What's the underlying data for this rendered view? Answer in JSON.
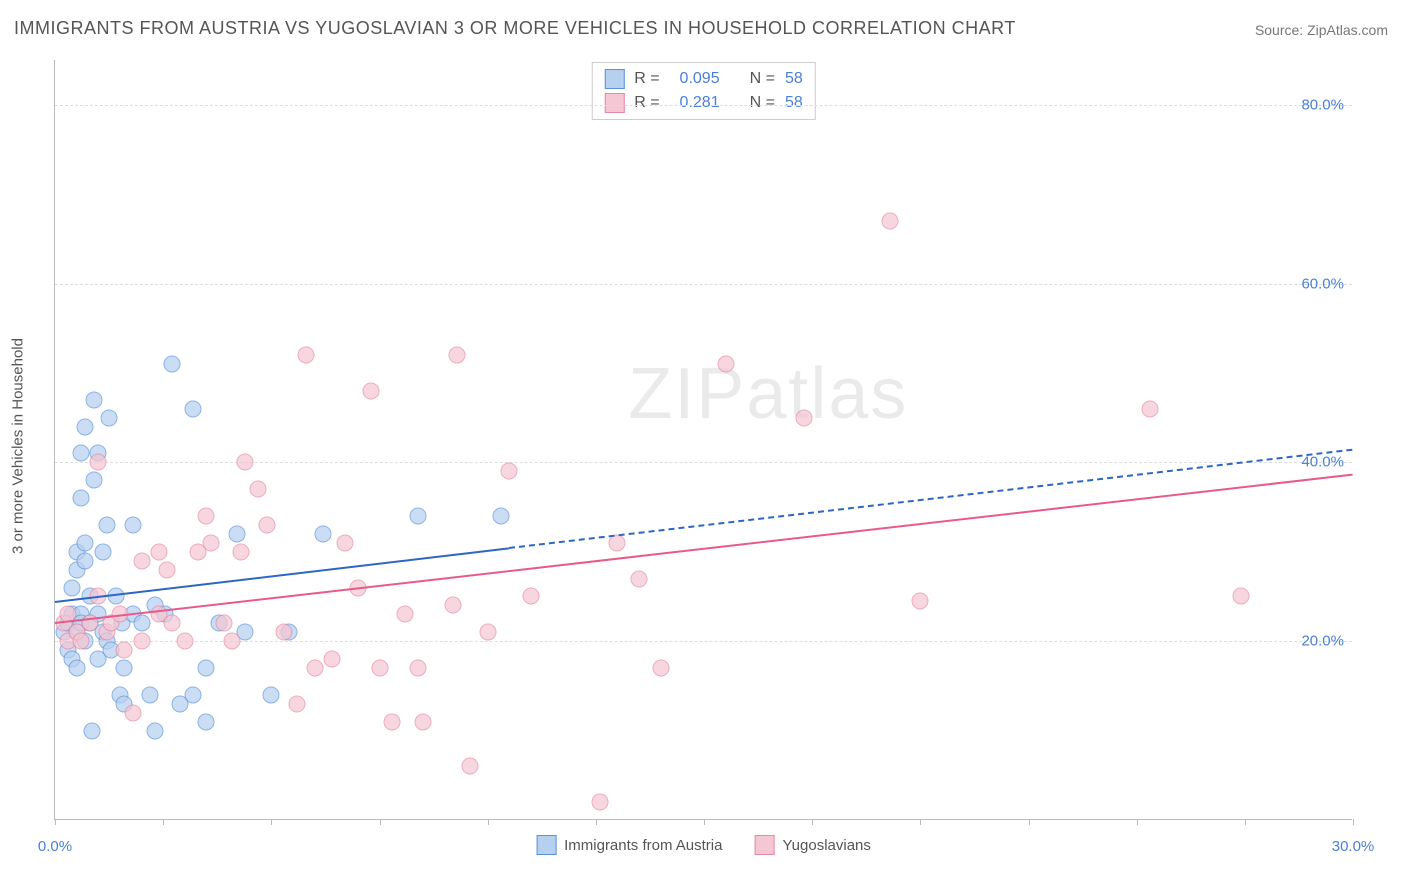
{
  "title": "IMMIGRANTS FROM AUSTRIA VS YUGOSLAVIAN 3 OR MORE VEHICLES IN HOUSEHOLD CORRELATION CHART",
  "source": "Source: ZipAtlas.com",
  "yaxis_label": "3 or more Vehicles in Household",
  "watermark_zip": "ZIP",
  "watermark_atlas": "atlas",
  "chart": {
    "type": "scatter",
    "background_color": "#ffffff",
    "grid_color": "#dddddd",
    "axis_color": "#bbbbbb",
    "tick_label_color": "#4a7fd8",
    "text_color": "#555555",
    "title_fontsize": 18,
    "tick_fontsize": 15,
    "label_fontsize": 15,
    "marker_size": 17,
    "marker_opacity": 0.7,
    "xlim": [
      0,
      30
    ],
    "ylim": [
      0,
      85
    ],
    "xticks": [
      0,
      2.5,
      5,
      7.5,
      10,
      12.5,
      15,
      17.5,
      20,
      22.5,
      25,
      27.5,
      30
    ],
    "xtick_labels": {
      "0": "0.0%",
      "30": "30.0%"
    },
    "yticks": [
      20,
      40,
      60,
      80
    ],
    "ytick_labels": [
      "20.0%",
      "40.0%",
      "60.0%",
      "80.0%"
    ],
    "series": [
      {
        "name": "Immigrants from Austria",
        "fill_color": "#b6d0f0",
        "stroke_color": "#5a93d8",
        "R": "0.095",
        "N": "58",
        "trend": {
          "x1": 0,
          "y1": 24.5,
          "x2": 10.5,
          "y2": 30.5,
          "extrap_x2": 30,
          "extrap_y2": 41.5,
          "color": "#2d66c4"
        },
        "points": [
          [
            0.2,
            21
          ],
          [
            0.3,
            22
          ],
          [
            0.3,
            19
          ],
          [
            0.4,
            23
          ],
          [
            0.4,
            18
          ],
          [
            0.4,
            26
          ],
          [
            0.5,
            21
          ],
          [
            0.5,
            28
          ],
          [
            0.5,
            17
          ],
          [
            0.5,
            30
          ],
          [
            0.6,
            23
          ],
          [
            0.6,
            22
          ],
          [
            0.6,
            36
          ],
          [
            0.6,
            41
          ],
          [
            0.7,
            29
          ],
          [
            0.7,
            31
          ],
          [
            0.7,
            20
          ],
          [
            0.7,
            44
          ],
          [
            0.8,
            22
          ],
          [
            0.8,
            25
          ],
          [
            0.85,
            10
          ],
          [
            0.9,
            38
          ],
          [
            0.9,
            47
          ],
          [
            1.0,
            18
          ],
          [
            1.0,
            23
          ],
          [
            1.0,
            41
          ],
          [
            1.1,
            21
          ],
          [
            1.1,
            30
          ],
          [
            1.2,
            20
          ],
          [
            1.2,
            33
          ],
          [
            1.25,
            45
          ],
          [
            1.3,
            19
          ],
          [
            1.4,
            25
          ],
          [
            1.5,
            14
          ],
          [
            1.55,
            22
          ],
          [
            1.6,
            13
          ],
          [
            1.6,
            17
          ],
          [
            1.8,
            23
          ],
          [
            1.8,
            33
          ],
          [
            2.0,
            22
          ],
          [
            2.2,
            14
          ],
          [
            2.3,
            10
          ],
          [
            2.3,
            24
          ],
          [
            2.55,
            23
          ],
          [
            2.7,
            51
          ],
          [
            2.9,
            13
          ],
          [
            3.2,
            14
          ],
          [
            3.2,
            46
          ],
          [
            3.5,
            11
          ],
          [
            3.5,
            17
          ],
          [
            3.8,
            22
          ],
          [
            4.2,
            32
          ],
          [
            4.4,
            21
          ],
          [
            5.0,
            14
          ],
          [
            5.4,
            21
          ],
          [
            6.2,
            32
          ],
          [
            8.4,
            34
          ],
          [
            10.3,
            34
          ]
        ]
      },
      {
        "name": "Yugoslavians",
        "fill_color": "#f5c6d3",
        "stroke_color": "#e589a3",
        "R": "0.281",
        "N": "58",
        "trend": {
          "x1": 0,
          "y1": 22.2,
          "x2": 30,
          "y2": 38.8,
          "color": "#e85a8a"
        },
        "points": [
          [
            0.2,
            22
          ],
          [
            0.3,
            20
          ],
          [
            0.3,
            23
          ],
          [
            0.5,
            21
          ],
          [
            0.6,
            20
          ],
          [
            0.8,
            22
          ],
          [
            1.0,
            25
          ],
          [
            1.0,
            40
          ],
          [
            1.2,
            21
          ],
          [
            1.3,
            22
          ],
          [
            1.5,
            23
          ],
          [
            1.6,
            19
          ],
          [
            1.8,
            12
          ],
          [
            2.0,
            20
          ],
          [
            2.0,
            29
          ],
          [
            2.4,
            23
          ],
          [
            2.4,
            30
          ],
          [
            2.6,
            28
          ],
          [
            2.7,
            22
          ],
          [
            3.0,
            20
          ],
          [
            3.3,
            30
          ],
          [
            3.5,
            34
          ],
          [
            3.6,
            31
          ],
          [
            3.9,
            22
          ],
          [
            4.1,
            20
          ],
          [
            4.3,
            30
          ],
          [
            4.4,
            40
          ],
          [
            4.7,
            37
          ],
          [
            4.9,
            33
          ],
          [
            5.3,
            21
          ],
          [
            5.6,
            13
          ],
          [
            5.8,
            52
          ],
          [
            6.0,
            17
          ],
          [
            6.4,
            18
          ],
          [
            6.7,
            31
          ],
          [
            7.0,
            26
          ],
          [
            7.3,
            48
          ],
          [
            7.5,
            17
          ],
          [
            7.8,
            11
          ],
          [
            8.1,
            23
          ],
          [
            8.4,
            17
          ],
          [
            8.5,
            11
          ],
          [
            9.2,
            24
          ],
          [
            9.3,
            52
          ],
          [
            9.6,
            6
          ],
          [
            10.0,
            21
          ],
          [
            10.5,
            39
          ],
          [
            11.0,
            25
          ],
          [
            12.6,
            2
          ],
          [
            13.0,
            31
          ],
          [
            13.5,
            27
          ],
          [
            14.0,
            17
          ],
          [
            15.5,
            51
          ],
          [
            17.3,
            45
          ],
          [
            19.3,
            67
          ],
          [
            20.0,
            24.5
          ],
          [
            25.3,
            46
          ],
          [
            27.4,
            25
          ]
        ]
      }
    ]
  },
  "stats_labels": {
    "R": "R =",
    "N": "N ="
  },
  "bottom_legend": [
    {
      "label": "Immigrants from Austria",
      "fill": "#b6d0f0",
      "stroke": "#5a93d8"
    },
    {
      "label": "Yugoslavians",
      "fill": "#f5c6d3",
      "stroke": "#e589a3"
    }
  ]
}
